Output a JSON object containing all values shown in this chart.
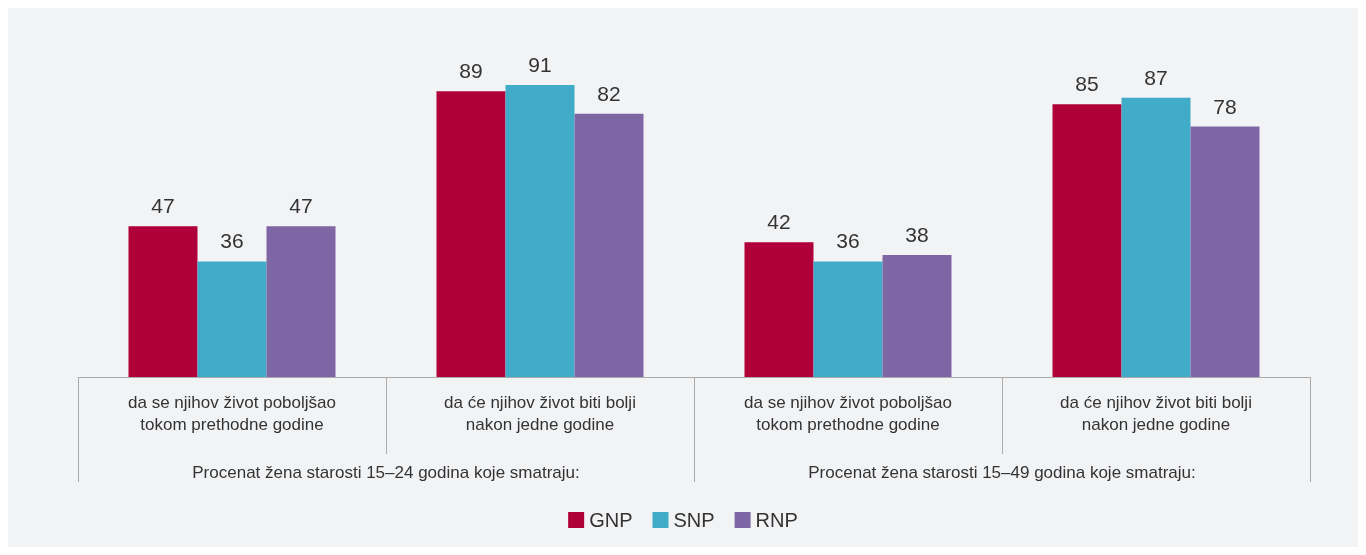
{
  "chart_data": {
    "type": "bar",
    "categories": [
      "da se njihov život poboljšao\ntokom prethodne godine",
      "da će njihov život biti bolji\nnakon jedne godine",
      "da se njihov život poboljšao\ntokom prethodne godine",
      "da će njihov život biti bolji\nnakon jedne godine"
    ],
    "series": [
      {
        "name": "GNP",
        "color": "#b0003a",
        "values": [
          47,
          89,
          42,
          85
        ]
      },
      {
        "name": "SNP",
        "color": "#40acc8",
        "values": [
          36,
          91,
          36,
          87
        ]
      },
      {
        "name": "RNP",
        "color": "#7e65a3",
        "values": [
          47,
          82,
          38,
          78
        ]
      }
    ],
    "annotations": [
      "Procenat žena starosti 15–24 godina koje smatraju:",
      "Procenat žena starosti 15–49 godina koje smatraju:"
    ],
    "data_labels": true,
    "grid": false,
    "legend": "bottom"
  }
}
